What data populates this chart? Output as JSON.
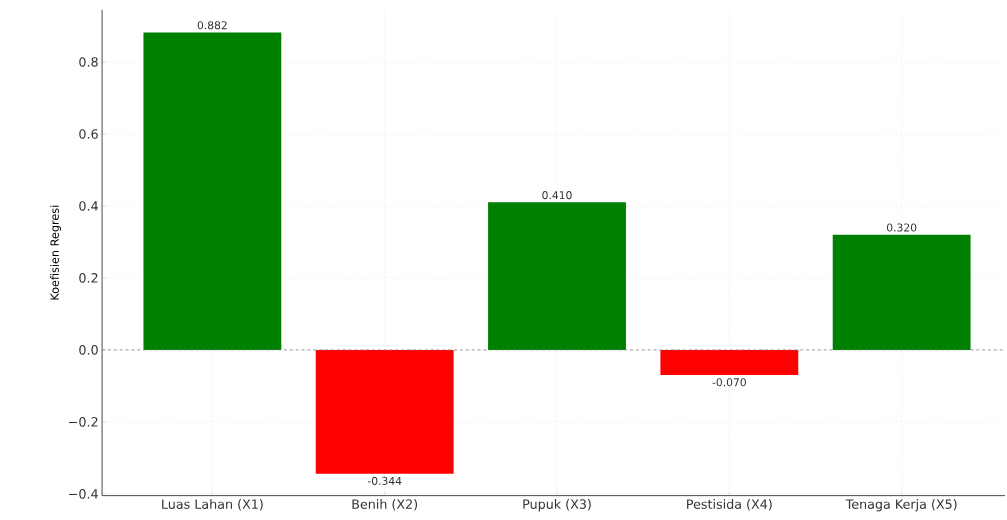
{
  "chart_data": {
    "type": "bar",
    "ylabel": "Koefisien Regresi",
    "categories": [
      "Luas Lahan (X1)",
      "Benih (X2)",
      "Pupuk (X3)",
      "Pestisida (X4)",
      "Tenaga Kerja (X5)"
    ],
    "values": [
      0.882,
      -0.344,
      0.41,
      -0.07,
      0.32
    ],
    "value_labels": [
      "0.882",
      "-0.344",
      "0.410",
      "-0.070",
      "0.320"
    ],
    "colors": [
      "#008000",
      "#ff0000",
      "#008000",
      "#ff0000",
      "#008000"
    ],
    "ylim": [
      -0.405,
      0.945
    ],
    "yticks": [
      {
        "value": -0.4,
        "label": "−0.4"
      },
      {
        "value": -0.2,
        "label": "−0.2"
      },
      {
        "value": 0,
        "label": "0.0"
      },
      0.2,
      0.4,
      0.6,
      0.8
    ],
    "grid": true,
    "ref_lines": [
      {
        "axis": "y",
        "value": 0,
        "color": "#808080",
        "line_style": "dashed"
      }
    ]
  }
}
